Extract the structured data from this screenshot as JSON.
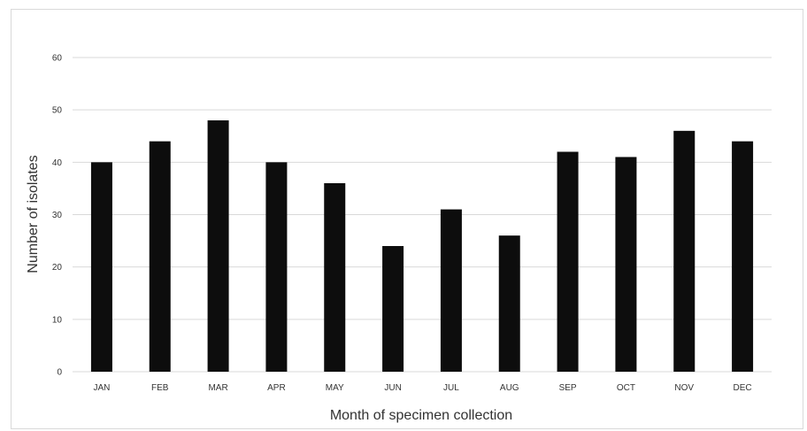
{
  "chart_data": {
    "type": "bar",
    "categories": [
      "JAN",
      "FEB",
      "MAR",
      "APR",
      "MAY",
      "JUN",
      "JUL",
      "AUG",
      "SEP",
      "OCT",
      "NOV",
      "DEC"
    ],
    "values": [
      40,
      44,
      48,
      40,
      36,
      24,
      31,
      26,
      42,
      41,
      46,
      44
    ],
    "title": "",
    "xlabel": "Month of specimen collection",
    "ylabel": "Number of isolates",
    "ylim": [
      0,
      60
    ],
    "yticks": [
      "0",
      "10",
      "20",
      "30",
      "40",
      "50",
      "60"
    ],
    "grid": true,
    "legend": "none",
    "bar_color": "#0d0d0d",
    "grid_color": "#d9d9d9"
  }
}
